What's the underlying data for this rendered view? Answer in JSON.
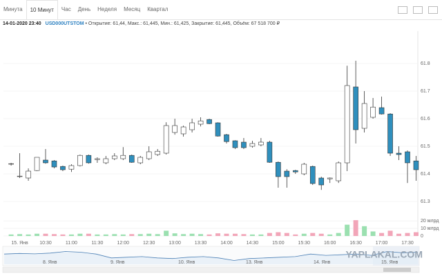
{
  "tabs": [
    "Минута",
    "10 Минут",
    "Час",
    "День",
    "Неделя",
    "Месяц",
    "Квартал"
  ],
  "active_tab": 1,
  "info": {
    "datetime": "14-01-2020 23:40",
    "ticker": "USD000UTSTOM",
    "details": "• Открытие: 61,44, Макс.: 61,445, Мин.: 61,425, Закрытие: 61,445, Объём: 67 518 700 ₽"
  },
  "chart_data": {
    "type": "candlestick",
    "categories": [
      null,
      "15. Янв",
      null,
      null,
      "10:30",
      null,
      null,
      "11:00",
      null,
      null,
      "11:30",
      null,
      null,
      "12:00",
      null,
      null,
      "12:30",
      null,
      null,
      "13:00",
      null,
      null,
      "13:30",
      null,
      null,
      "14:00",
      null,
      null,
      "14:30",
      null,
      null,
      "15:00",
      null,
      null,
      "15:30",
      null,
      null,
      "16:00",
      null,
      null,
      "16:30",
      null,
      null,
      "17:00",
      null,
      null,
      "17:30",
      null
    ],
    "open": [
      61.435,
      61.39,
      61.385,
      61.412,
      61.45,
      61.447,
      61.427,
      61.417,
      61.43,
      61.467,
      61.452,
      61.44,
      61.455,
      61.455,
      61.467,
      61.44,
      61.455,
      61.47,
      61.475,
      61.55,
      61.545,
      61.56,
      61.58,
      61.597,
      61.585,
      61.542,
      61.52,
      61.515,
      61.5,
      61.505,
      61.515,
      61.442,
      61.41,
      61.412,
      61.4,
      61.427,
      61.385,
      61.382,
      61.375,
      61.44,
      61.715,
      61.565,
      61.605,
      61.64,
      61.617,
      61.475,
      61.48,
      61.447
    ],
    "high": [
      61.44,
      61.475,
      61.42,
      61.46,
      61.49,
      61.45,
      61.43,
      61.435,
      61.47,
      61.47,
      61.46,
      61.465,
      61.475,
      61.497,
      61.47,
      61.465,
      61.5,
      61.49,
      61.587,
      61.6,
      61.575,
      61.6,
      61.605,
      61.6,
      61.587,
      61.545,
      61.522,
      61.53,
      61.52,
      61.53,
      61.52,
      61.445,
      61.417,
      61.415,
      61.44,
      61.43,
      61.39,
      61.387,
      61.445,
      61.792,
      61.81,
      61.7,
      61.675,
      61.68,
      61.62,
      61.5,
      61.485,
      61.465
    ],
    "low": [
      61.43,
      61.385,
      61.375,
      61.41,
      61.437,
      61.42,
      61.41,
      61.407,
      61.427,
      61.437,
      61.44,
      61.435,
      61.45,
      61.45,
      61.44,
      61.435,
      61.45,
      61.465,
      61.47,
      61.542,
      61.535,
      61.55,
      61.572,
      61.58,
      61.535,
      61.51,
      61.49,
      61.49,
      61.495,
      61.5,
      61.44,
      61.35,
      61.35,
      61.4,
      61.395,
      61.36,
      61.342,
      61.367,
      61.367,
      61.41,
      61.51,
      61.55,
      61.6,
      61.615,
      61.465,
      61.45,
      61.367,
      61.375
    ],
    "close": [
      61.437,
      61.392,
      61.41,
      61.46,
      61.44,
      61.425,
      61.415,
      61.43,
      61.467,
      61.44,
      61.455,
      61.455,
      61.465,
      61.467,
      61.442,
      61.46,
      61.48,
      61.482,
      61.575,
      61.575,
      61.57,
      61.585,
      61.592,
      61.582,
      61.537,
      61.517,
      61.495,
      61.495,
      61.51,
      61.515,
      61.442,
      61.39,
      61.39,
      61.407,
      61.435,
      61.365,
      61.36,
      61.385,
      61.44,
      61.72,
      61.56,
      61.655,
      61.642,
      61.617,
      61.475,
      61.47,
      61.44,
      61.415
    ],
    "up_color": "#ffffff",
    "down_color": "#2f8fbd",
    "ylim": [
      61.255,
      61.9175
    ],
    "yticks": [
      61.3,
      61.4,
      61.5,
      61.6,
      61.7,
      61.8
    ],
    "grid": true,
    "volume": [
      2000000000,
      2500000000,
      2000000000,
      3000000000,
      3000000000,
      2500000000,
      2000000000,
      2000000000,
      3000000000,
      3000000000,
      2000000000,
      2000000000,
      2500000000,
      2000000000,
      2500000000,
      2500000000,
      3000000000,
      2500000000,
      7000000000,
      3500000000,
      2500000000,
      3000000000,
      2500000000,
      2000000000,
      3500000000,
      3000000000,
      3000000000,
      2500000000,
      2000000000,
      2000000000,
      4000000000,
      5000000000,
      4000000000,
      2000000000,
      3000000000,
      4000000000,
      3000000000,
      2000000000,
      4000000000,
      15000000000,
      21000000000,
      13000000000,
      6000000000,
      4000000000,
      7000000000,
      3000000000,
      4000000000,
      5000000000
    ],
    "volume_up_color": "#9be0b0",
    "volume_down_color": "#f2a5b8",
    "volume_ylim": [
      0,
      22000000000
    ],
    "volume_yticks": [
      0,
      {
        "value": 10000000000,
        "label": "10 млрд"
      },
      {
        "value": 20000000000,
        "label": "20 млрд"
      }
    ]
  },
  "navigator": {
    "labels": [
      "8. Янв",
      "9. Янв",
      "10. Янв",
      "13. Янв",
      "14. Янв",
      "15. Янв"
    ],
    "values": [
      61.3,
      61.35,
      61.32,
      61.38,
      61.5,
      61.45,
      61.3,
      61.0,
      61.05,
      61.1,
      61.0,
      60.95,
      61.05,
      61.1,
      61.0,
      60.8,
      60.95,
      61.0,
      61.05,
      61.1,
      61.3,
      61.2,
      61.25,
      61.3,
      61.2,
      61.5,
      61.4,
      61.45
    ],
    "ylim": [
      60.5,
      61.8
    ]
  },
  "watermark": "YAPLAKAL.COM"
}
